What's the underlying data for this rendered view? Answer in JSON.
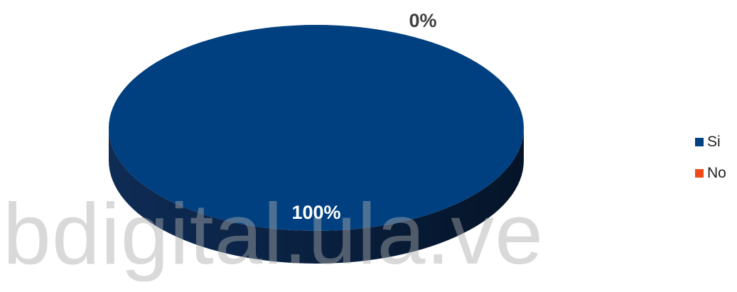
{
  "chart_data": {
    "type": "pie",
    "style": "3d",
    "categories": [
      "Si",
      "No"
    ],
    "values": [
      100,
      0
    ],
    "data_labels": [
      "100%",
      "0%"
    ],
    "colors": [
      "#004080",
      "#f04a1a"
    ],
    "legend_position": "right"
  },
  "watermark": "bdigital.ula.ve"
}
